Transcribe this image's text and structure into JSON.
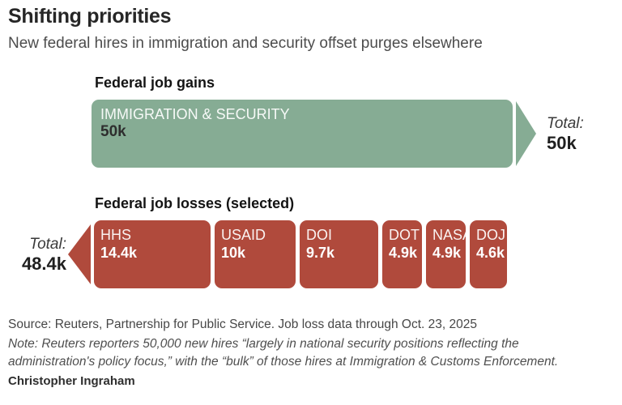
{
  "page": {
    "title": "Shifting priorities",
    "subtitle": "New federal hires in immigration and security offset purges elsewhere",
    "source": "Source: Reuters, Partnership for Public Service. Job loss data through Oct. 23, 2025",
    "note_line1": "Note: Reuters reporters 50,000 new hires “largely in national security positions reflecting the",
    "note_line2": "administration's policy focus,” with the “bulk” of those hires at Immigration & Customs Enforcement.",
    "byline": "Christopher Ingraham"
  },
  "chart_data": {
    "type": "bar",
    "orientation": "horizontal",
    "title": "Shifting priorities",
    "subtitle": "New federal hires in immigration and security offset purges elsewhere",
    "unit": "thousands of jobs",
    "series": [
      {
        "name": "Federal job gains",
        "color": "#86ac94",
        "total": 50,
        "total_label": "Total:",
        "total_value_label": "50k",
        "bars": [
          {
            "label": "IMMIGRATION & SECURITY",
            "value": 50,
            "value_label": "50k"
          }
        ]
      },
      {
        "name": "Federal job losses (selected)",
        "color": "#b04a3c",
        "total": 48.4,
        "total_label": "Total:",
        "total_value_label": "48.4k",
        "bars": [
          {
            "label": "HHS",
            "value": 14.4,
            "value_label": "14.4k"
          },
          {
            "label": "USAID",
            "value": 10,
            "value_label": "10k"
          },
          {
            "label": "DOI",
            "value": 9.7,
            "value_label": "9.7k"
          },
          {
            "label": "DOT",
            "value": 4.9,
            "value_label": "4.9k"
          },
          {
            "label": "NASA",
            "value": 4.9,
            "value_label": "4.9k"
          },
          {
            "label": "DOJ",
            "value": 4.6,
            "value_label": "4.6k"
          }
        ]
      }
    ]
  }
}
